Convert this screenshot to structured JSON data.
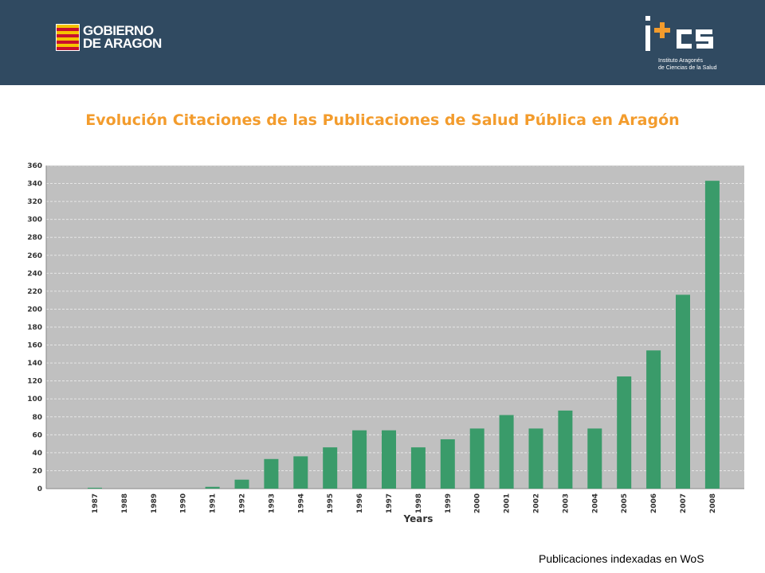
{
  "header": {
    "left_logo_line1": "GOBIERNO",
    "left_logo_line2": "DE ARAGON",
    "right_logo_text": "i+cs",
    "right_logo_sub1": "Instituto Aragonés",
    "right_logo_sub2": "de Ciencias de la Salud"
  },
  "title": "Evolución Citaciones de las Publicaciones de Salud Pública en Aragón",
  "footer": "Publicaciones indexadas en WoS",
  "colors": {
    "header_bg": "#304a61",
    "title": "#f39c2d",
    "bar": "#3a9b6a",
    "plot_bg": "#c0c0c0"
  },
  "chart_data": {
    "type": "bar",
    "title": "Evolución Citaciones de las Publicaciones de Salud Pública en Aragón",
    "xlabel": "Years",
    "ylabel": "",
    "categories": [
      "1987",
      "1988",
      "1989",
      "1990",
      "1991",
      "1992",
      "1993",
      "1994",
      "1995",
      "1996",
      "1997",
      "1998",
      "1999",
      "2000",
      "2001",
      "2002",
      "2003",
      "2004",
      "2005",
      "2006",
      "2007",
      "2008"
    ],
    "values": [
      1,
      0,
      0,
      0,
      2,
      10,
      33,
      36,
      46,
      65,
      65,
      46,
      55,
      67,
      82,
      67,
      87,
      67,
      125,
      154,
      216,
      343
    ],
    "ylim": [
      0,
      360
    ],
    "yticks": [
      0,
      20,
      40,
      60,
      80,
      100,
      120,
      140,
      160,
      180,
      200,
      220,
      240,
      260,
      280,
      300,
      320,
      340,
      360
    ],
    "grid": true,
    "grid_style": "dashed"
  }
}
